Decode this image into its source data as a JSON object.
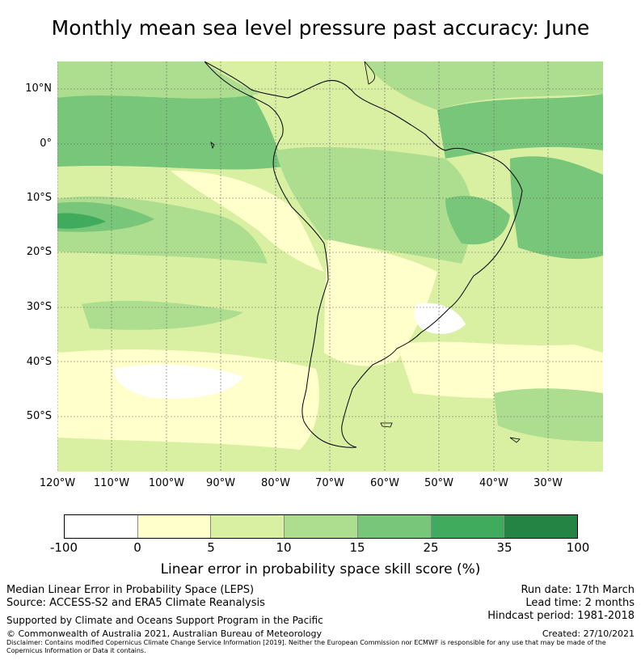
{
  "title": "Monthly mean sea level pressure past accuracy: June",
  "map": {
    "lat_labels": [
      "10°N",
      "0°",
      "10°S",
      "20°S",
      "30°S",
      "40°S",
      "50°S"
    ],
    "lon_labels": [
      "120°W",
      "110°W",
      "100°W",
      "90°W",
      "80°W",
      "70°W",
      "60°W",
      "50°W",
      "40°W",
      "30°W"
    ]
  },
  "colorbar": {
    "colors": [
      "#ffffff",
      "#ffffcc",
      "#d9f0a3",
      "#addd8e",
      "#78c679",
      "#41ab5d",
      "#238443"
    ],
    "ticks": [
      "-100",
      "0",
      "5",
      "10",
      "15",
      "25",
      "35",
      "100"
    ],
    "label": "Linear error in probability space skill score (%)"
  },
  "footer": {
    "line1": "Median Linear Error in Probability Space (LEPS)",
    "line2": "Source: ACCESS-S2 and ERA5 Climate Reanalysis",
    "run_date": "Run date: 17th March",
    "lead_time": "Lead time: 2 months",
    "hindcast": "Hindcast period: 1981-2018",
    "supported": "Supported by Climate and Oceans Support Program in the Pacific",
    "copyright": "© Commonwealth of Australia 2021, Australian Bureau of Meteorology",
    "created": "Created: 27/10/2021",
    "disclaimer": "Disclaimer: Contains modified Copernicus Climate Change Service Information [2019]. Neither the European Commission nor ECMWF is responsible for any use that may be made of the Copernicus Information or Data it contains."
  }
}
